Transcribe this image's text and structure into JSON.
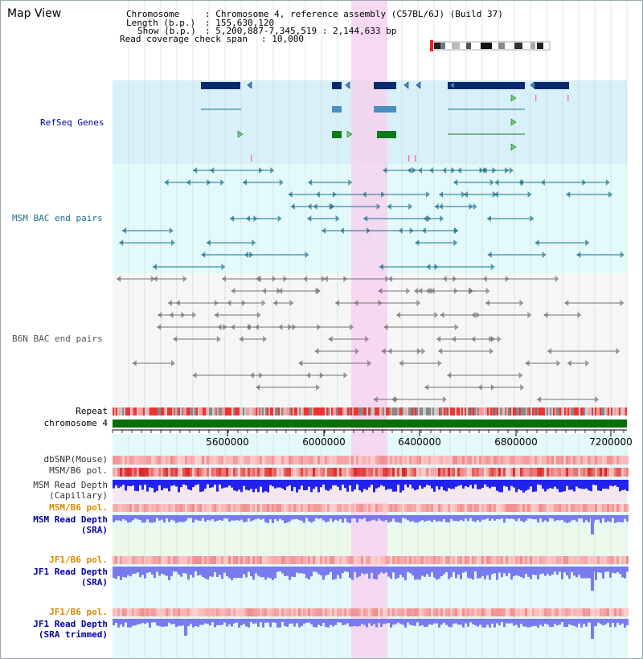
{
  "app": {
    "title": "Map View"
  },
  "header": {
    "chromosome_label": "Chromosome",
    "chromosome_value": ": Chromosome 4, reference assembly (C57BL/6J) (Build 37)",
    "length_label": "Length (b.p.)",
    "length_value": ": 155,630,120",
    "show_label": "Show (b.p.)",
    "show_value": ": 5,200,887-7,345,519 : 2,144,633 bp",
    "coverage_label": "Read coverage check span",
    "coverage_value": ": 10,000"
  },
  "tracks": {
    "refseq": "RefSeq Genes",
    "msm_bac": "MSM BAC end pairs",
    "b6n_bac": "B6N BAC end pairs",
    "repeat": "Repeat",
    "chromosome": "chromosome 4",
    "dbsnp": "dbSNP(Mouse)",
    "msm_b6_pol": "MSM/B6 pol.",
    "msm_depth_1": "MSM Read Depth",
    "msm_depth_2": "(Capillary)",
    "msm_b6_pol_sra": "MSM/B6 pol.",
    "msm_sra_1": "MSM Read Depth",
    "msm_sra_2": "(SRA)",
    "jf1_pol_1": "JF1/B6 pol.",
    "jf1_sra_1": "JF1 Read Depth",
    "jf1_sra_2": "(SRA)",
    "jf1_pol_2": "JF1/B6 pol.",
    "jf1_trim_1": "JF1 Read Depth",
    "jf1_trim_2": "(SRA trimmed)"
  },
  "ruler": {
    "ticks": [
      "5600000",
      "6000000",
      "6400000",
      "6800000",
      "7200000"
    ]
  },
  "colors": {
    "gene_dark": "#0a2a6e",
    "gene_mid": "#4a8fc0",
    "gene_green": "#0e7a1a",
    "msm_bac": "#1a6f8a",
    "b6n_bac": "#707070",
    "highlight": "#f7d2f0",
    "refseq_bg": "#d8f0f8",
    "bac_bg": "#e2fafa",
    "chrom_green": "#0a6e0a",
    "depth_blue": "#2222ee",
    "sra_blue": "#7a7aee",
    "label_blue": "#0000aa",
    "label_orange": "#dd8800",
    "label_teal": "#1a6f8a"
  }
}
